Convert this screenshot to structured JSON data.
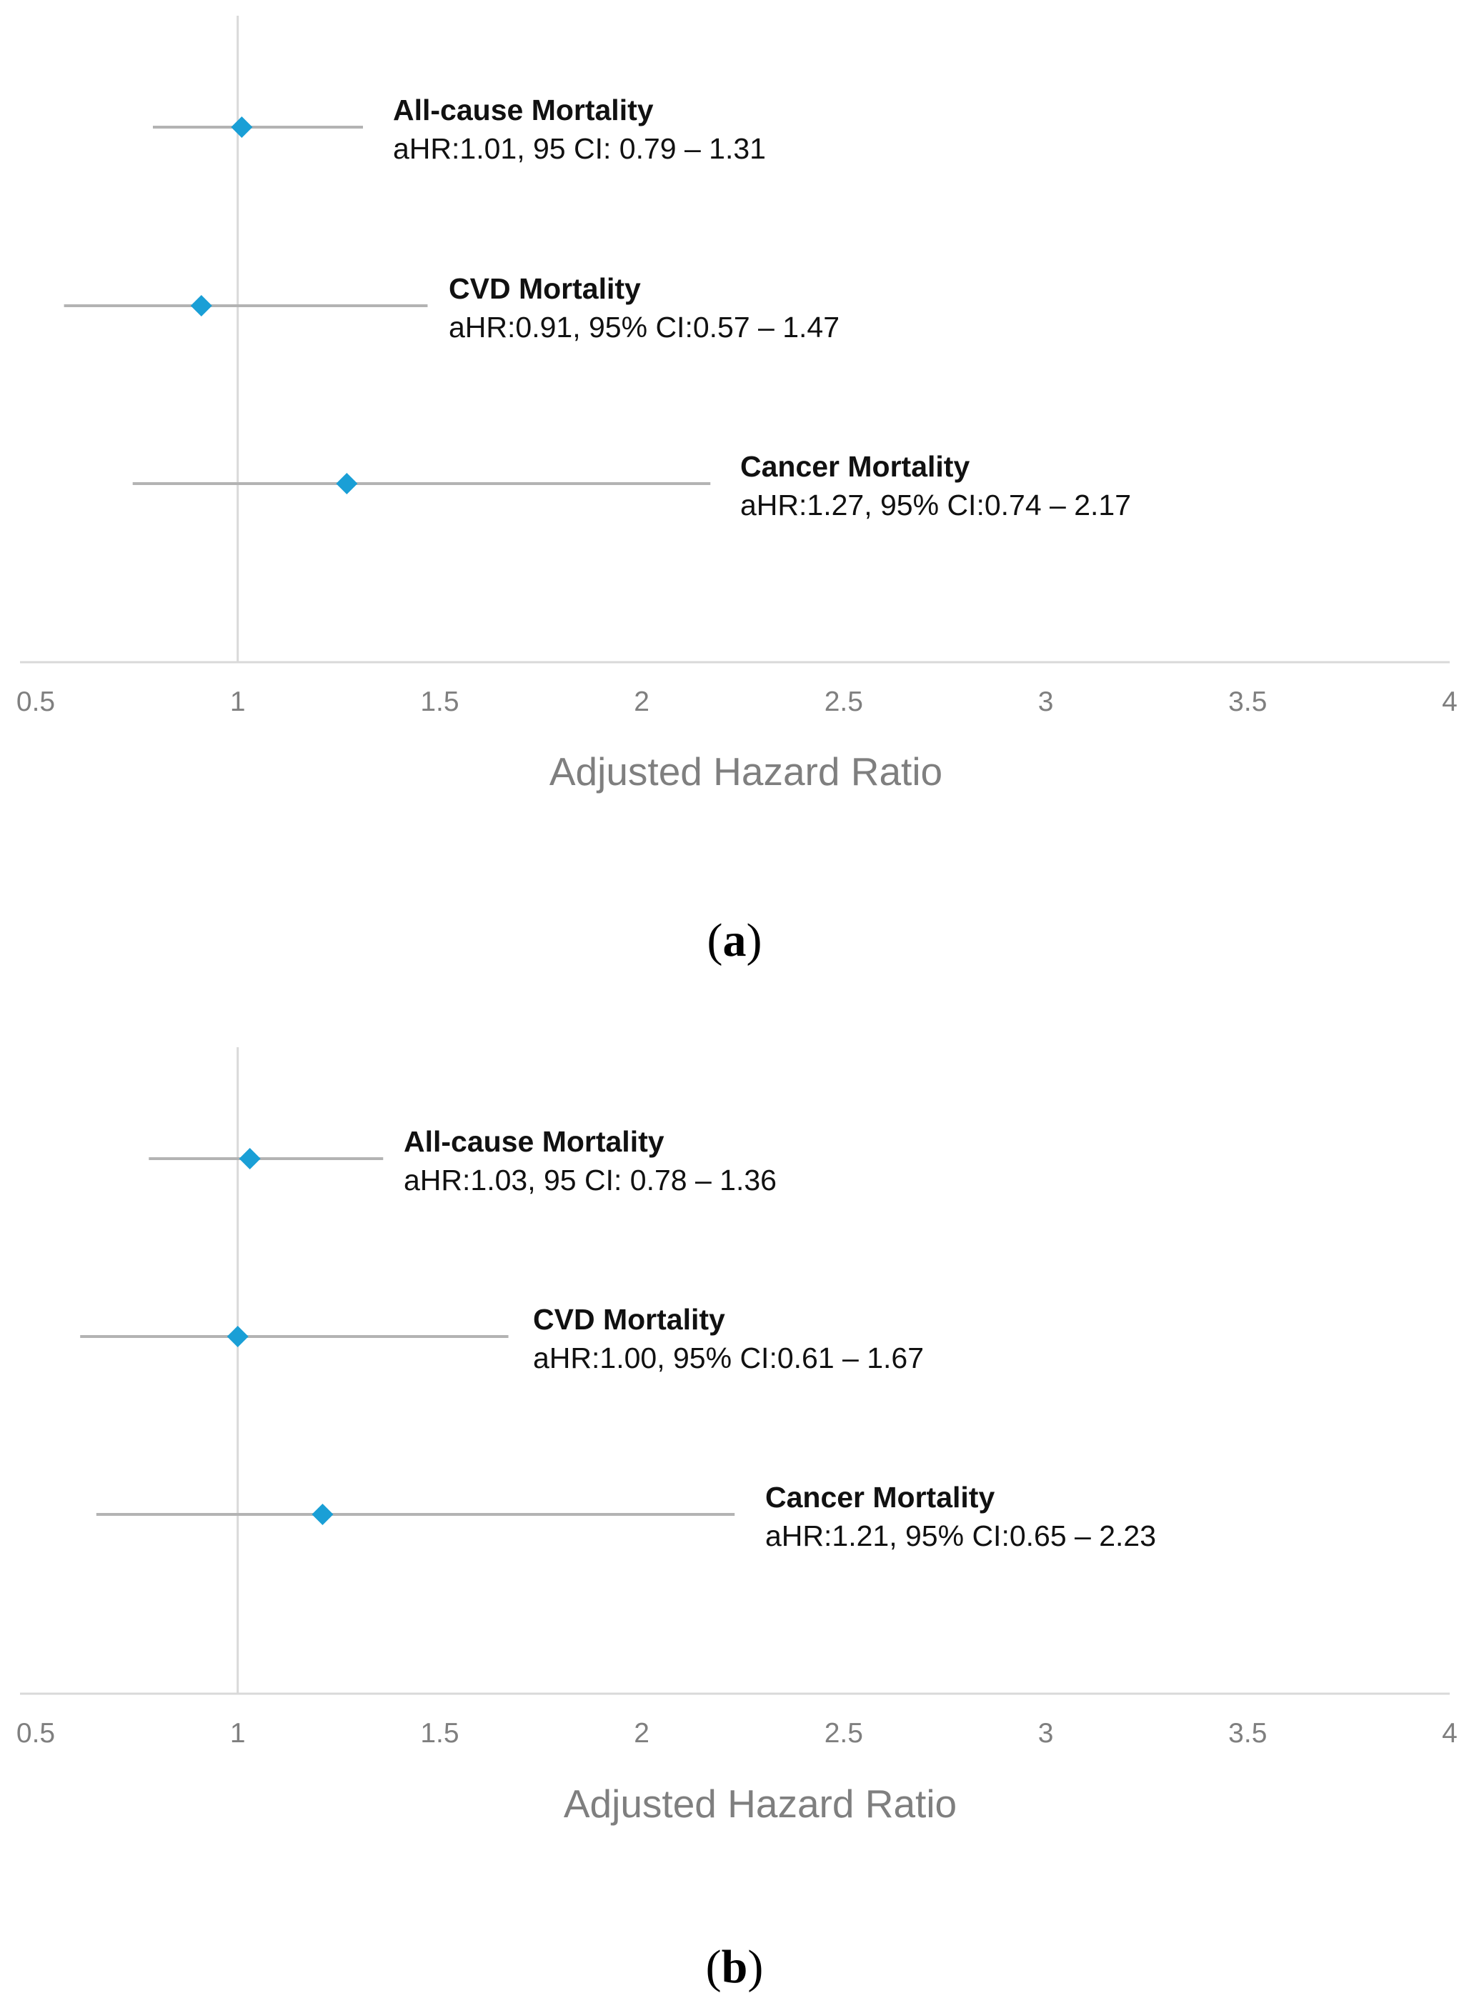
{
  "chart_data": [
    {
      "type": "scatter",
      "panel": "a",
      "panel_label": "a",
      "xlabel": "Adjusted Hazard Ratio",
      "xlim": [
        0.5,
        4
      ],
      "xticks": [
        "0.5",
        "1",
        "1.5",
        "2",
        "2.5",
        "3",
        "3.5",
        "4"
      ],
      "reference_line": 1,
      "marker_color": "#1a9fd6",
      "ci_color": "#b3b3b3",
      "series": [
        {
          "name": "All-cause Mortality",
          "estimate": 1.01,
          "lower": 0.79,
          "upper": 1.31,
          "stat_text": "aHR:1.01, 95 CI: 0.79 – 1.31"
        },
        {
          "name": "CVD Mortality",
          "estimate": 0.91,
          "lower": 0.57,
          "upper": 1.47,
          "stat_text": "aHR:0.91, 95% CI:0.57 – 1.47"
        },
        {
          "name": "Cancer Mortality",
          "estimate": 1.27,
          "lower": 0.74,
          "upper": 2.17,
          "stat_text": "aHR:1.27, 95% CI:0.74 – 2.17"
        }
      ]
    },
    {
      "type": "scatter",
      "panel": "b",
      "panel_label": "b",
      "xlabel": "Adjusted Hazard Ratio",
      "xlim": [
        0.5,
        4
      ],
      "xticks": [
        "0.5",
        "1",
        "1.5",
        "2",
        "2.5",
        "3",
        "3.5",
        "4"
      ],
      "reference_line": 1,
      "marker_color": "#1a9fd6",
      "ci_color": "#b3b3b3",
      "series": [
        {
          "name": "All-cause Mortality",
          "estimate": 1.03,
          "lower": 0.78,
          "upper": 1.36,
          "stat_text": "aHR:1.03, 95 CI: 0.78 – 1.36"
        },
        {
          "name": "CVD Mortality",
          "estimate": 1.0,
          "lower": 0.61,
          "upper": 1.67,
          "stat_text": "aHR:1.00, 95% CI:0.61 – 1.67"
        },
        {
          "name": "Cancer Mortality",
          "estimate": 1.21,
          "lower": 0.65,
          "upper": 2.23,
          "stat_text": "aHR:1.21, 95% CI:0.65 – 2.23"
        }
      ]
    }
  ]
}
